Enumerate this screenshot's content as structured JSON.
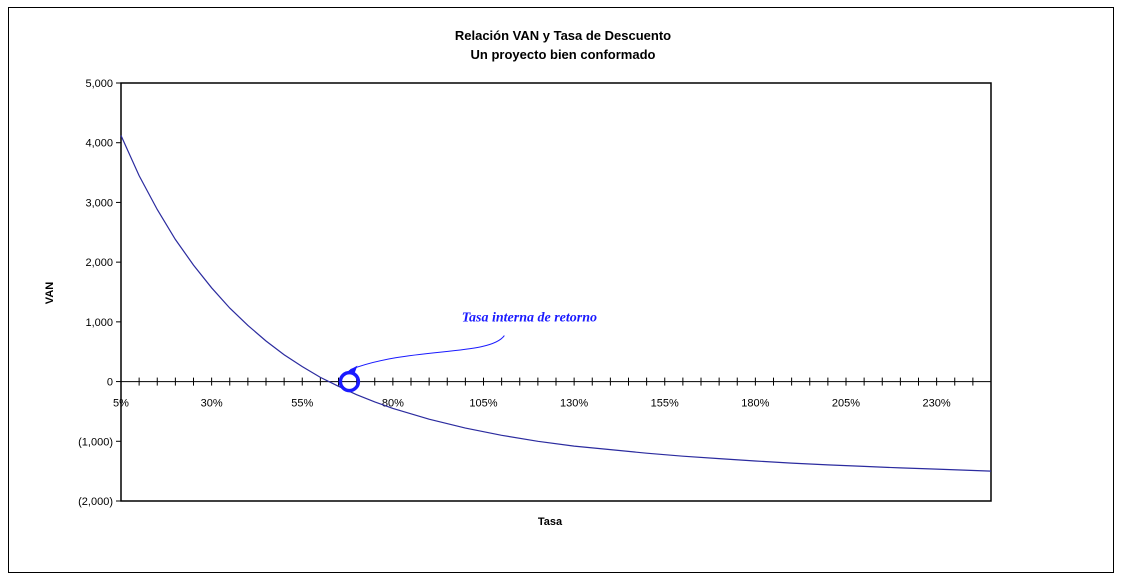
{
  "chart_data": {
    "type": "line",
    "title": "Relación VAN y Tasa de Descuento",
    "subtitle": "Un proyecto bien conformado",
    "xlabel": "Tasa",
    "ylabel": "VAN",
    "xlim": [
      5,
      245
    ],
    "ylim": [
      -2000,
      5000
    ],
    "y_ticks": [
      5000,
      4000,
      3000,
      2000,
      1000,
      0,
      -1000,
      -2000
    ],
    "y_tick_labels": [
      "5,000",
      "4,000",
      "3,000",
      "2,000",
      "1,000",
      "0",
      "(1,000)",
      "(2,000)"
    ],
    "x_ticks": [
      5,
      30,
      55,
      80,
      105,
      130,
      155,
      180,
      205,
      230
    ],
    "x_tick_labels": [
      "5%",
      "30%",
      "55%",
      "80%",
      "105%",
      "130%",
      "155%",
      "180%",
      "205%",
      "230%"
    ],
    "grid": false,
    "legend": "none",
    "series": [
      {
        "color": "#2b2b9f",
        "x": [
          5,
          10,
          15,
          20,
          25,
          30,
          35,
          40,
          45,
          50,
          55,
          60,
          65,
          70,
          75,
          80,
          90,
          100,
          110,
          120,
          130,
          140,
          150,
          160,
          170,
          180,
          190,
          200,
          210,
          220,
          230,
          245
        ],
        "values": [
          4120,
          3450,
          2880,
          2380,
          1950,
          1570,
          1230,
          940,
          680,
          450,
          250,
          70,
          -80,
          -220,
          -340,
          -450,
          -630,
          -780,
          -900,
          -1000,
          -1080,
          -1140,
          -1200,
          -1250,
          -1290,
          -1330,
          -1365,
          -1395,
          -1420,
          -1445,
          -1465,
          -1500
        ]
      }
    ],
    "annotation": {
      "text": "Tasa interna de retorno",
      "x": 68,
      "y": 0,
      "color": "#1a1aff"
    }
  }
}
